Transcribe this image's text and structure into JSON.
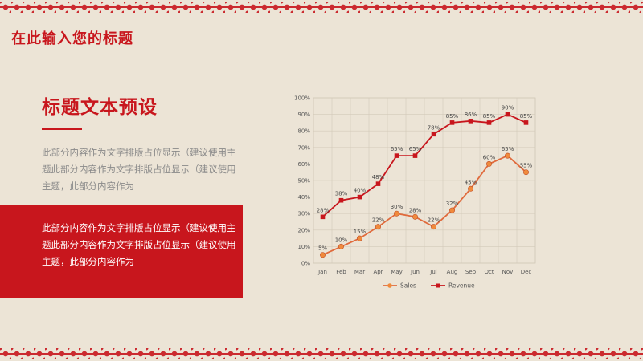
{
  "page": {
    "title": "在此输入您的标题",
    "heading": "标题文本预设",
    "body_text": "此部分内容作为文字排版占位显示（建议使用主题此部分内容作为文字排版占位显示（建议使用主题，此部分内容作为",
    "panel_text": "此部分内容作为文字排版占位显示（建议使用主题此部分内容作为文字排版占位显示（建议使用主题，此部分内容作为"
  },
  "colors": {
    "accent": "#c8161d",
    "sales_line": "#e06a3c",
    "sales_marker": "#f08a3c",
    "revenue_line": "#c8161d",
    "background": "#ece4d6"
  },
  "chart_data": {
    "type": "line",
    "categories": [
      "Jan",
      "Feb",
      "Mar",
      "Apr",
      "May",
      "Jun",
      "Jul",
      "Aug",
      "Sep",
      "Oct",
      "Nov",
      "Dec"
    ],
    "ylim": [
      0,
      100
    ],
    "y_ticks": [
      "0%",
      "10%",
      "20%",
      "30%",
      "40%",
      "50%",
      "60%",
      "70%",
      "80%",
      "90%",
      "100%"
    ],
    "grid": true,
    "legend_position": "bottom",
    "series": [
      {
        "name": "Sales",
        "values": [
          5,
          10,
          15,
          22,
          30,
          28,
          22,
          32,
          45,
          60,
          65,
          55
        ],
        "labels": [
          "5%",
          "10%",
          "15%",
          "22%",
          "30%",
          "28%",
          "22%",
          "32%",
          "45%",
          "60%",
          "65%",
          "55%"
        ]
      },
      {
        "name": "Revenue",
        "values": [
          28,
          38,
          40,
          48,
          65,
          65,
          78,
          85,
          86,
          85,
          90,
          85
        ],
        "labels": [
          "28%",
          "38%",
          "40%",
          "48%",
          "65%",
          "65%",
          "78%",
          "85%",
          "86%",
          "85%",
          "90%",
          "85%"
        ]
      }
    ]
  }
}
